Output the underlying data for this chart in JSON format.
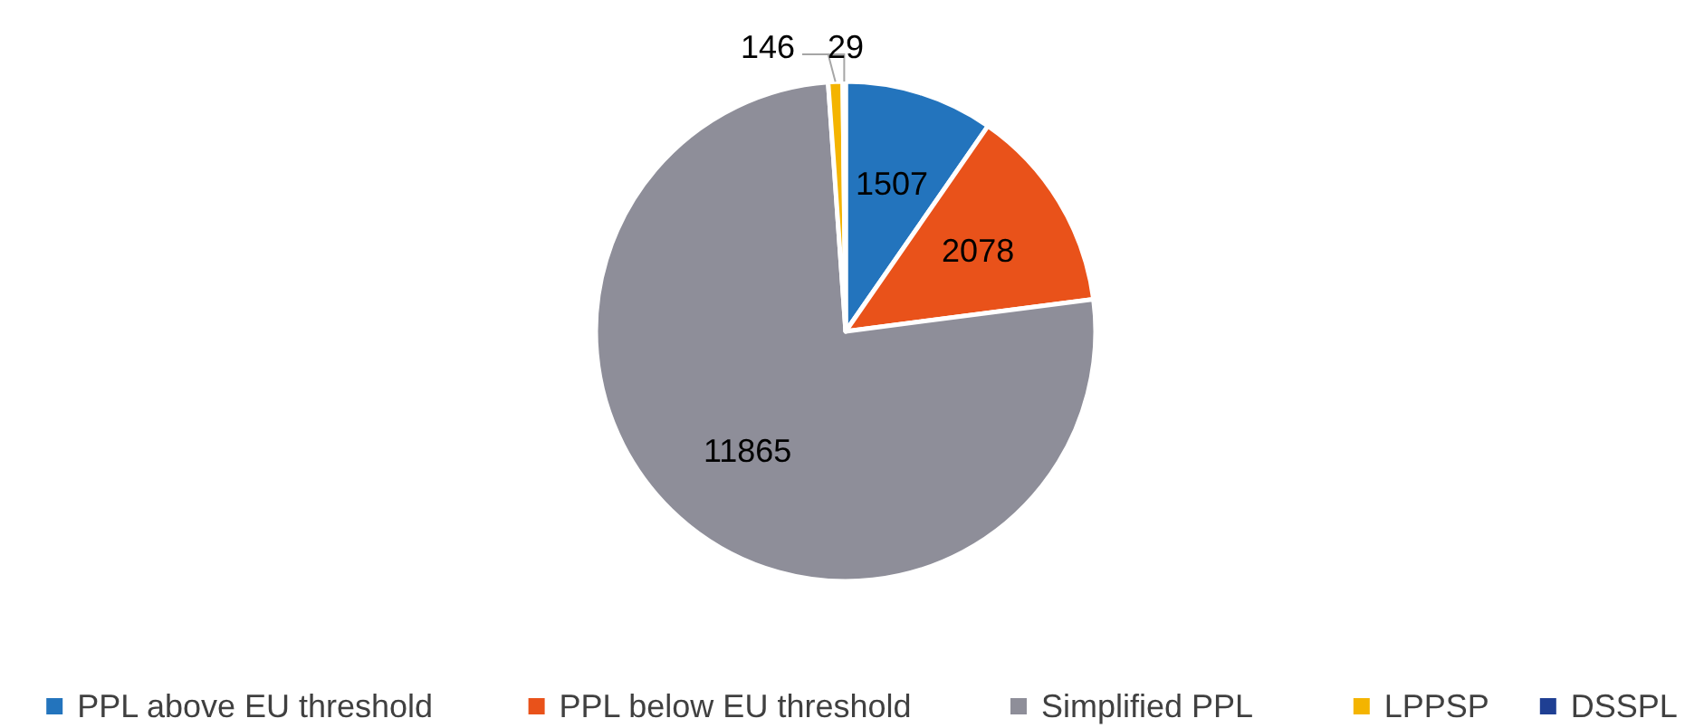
{
  "chart_data": {
    "type": "pie",
    "categories": [
      "PPL above EU threshold",
      "PPL below EU threshold",
      "Simplified PPL",
      "LPPSP",
      "DSSPL"
    ],
    "values": [
      1507,
      2078,
      11865,
      146,
      29
    ],
    "colors": [
      "#2374bd",
      "#e9521a",
      "#8e8e99",
      "#f4b400",
      "#1f3f93"
    ],
    "data_labels": true,
    "legend": "bottom"
  }
}
